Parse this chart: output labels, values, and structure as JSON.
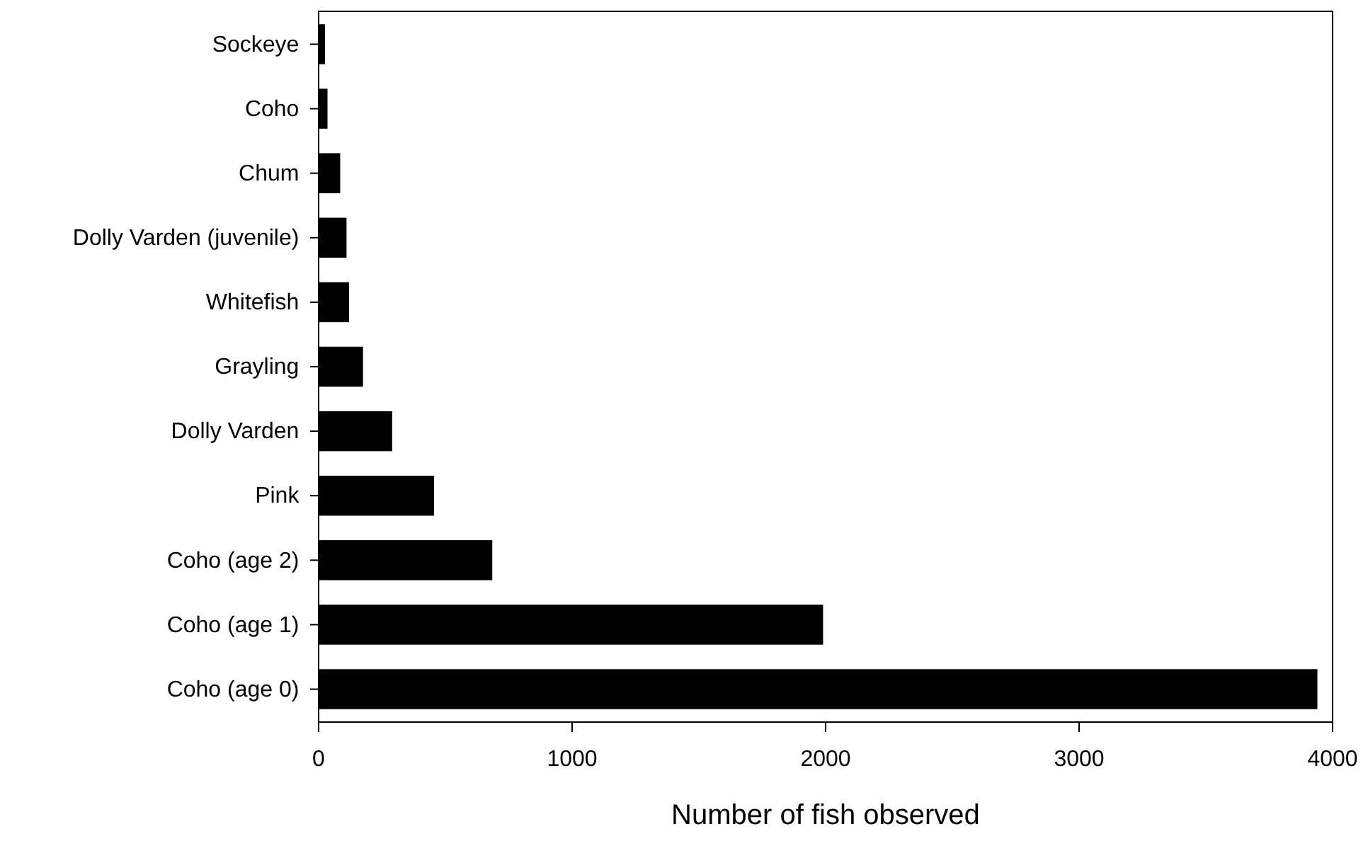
{
  "chart_data": {
    "type": "bar",
    "orientation": "horizontal",
    "xlabel": "Number of fish observed",
    "categories": [
      "Sockeye",
      "Coho",
      "Chum",
      "Dolly Varden (juvenile)",
      "Whitefish",
      "Grayling",
      "Dolly Varden",
      "Pink",
      "Coho (age 2)",
      "Coho (age 1)",
      "Coho (age 0)"
    ],
    "values": [
      25,
      35,
      85,
      110,
      120,
      175,
      290,
      455,
      685,
      1990,
      3940
    ],
    "color": "#000000",
    "xlim": [
      0,
      4000
    ],
    "xticks": [
      0,
      1000,
      2000,
      3000,
      4000
    ],
    "grid": false
  }
}
